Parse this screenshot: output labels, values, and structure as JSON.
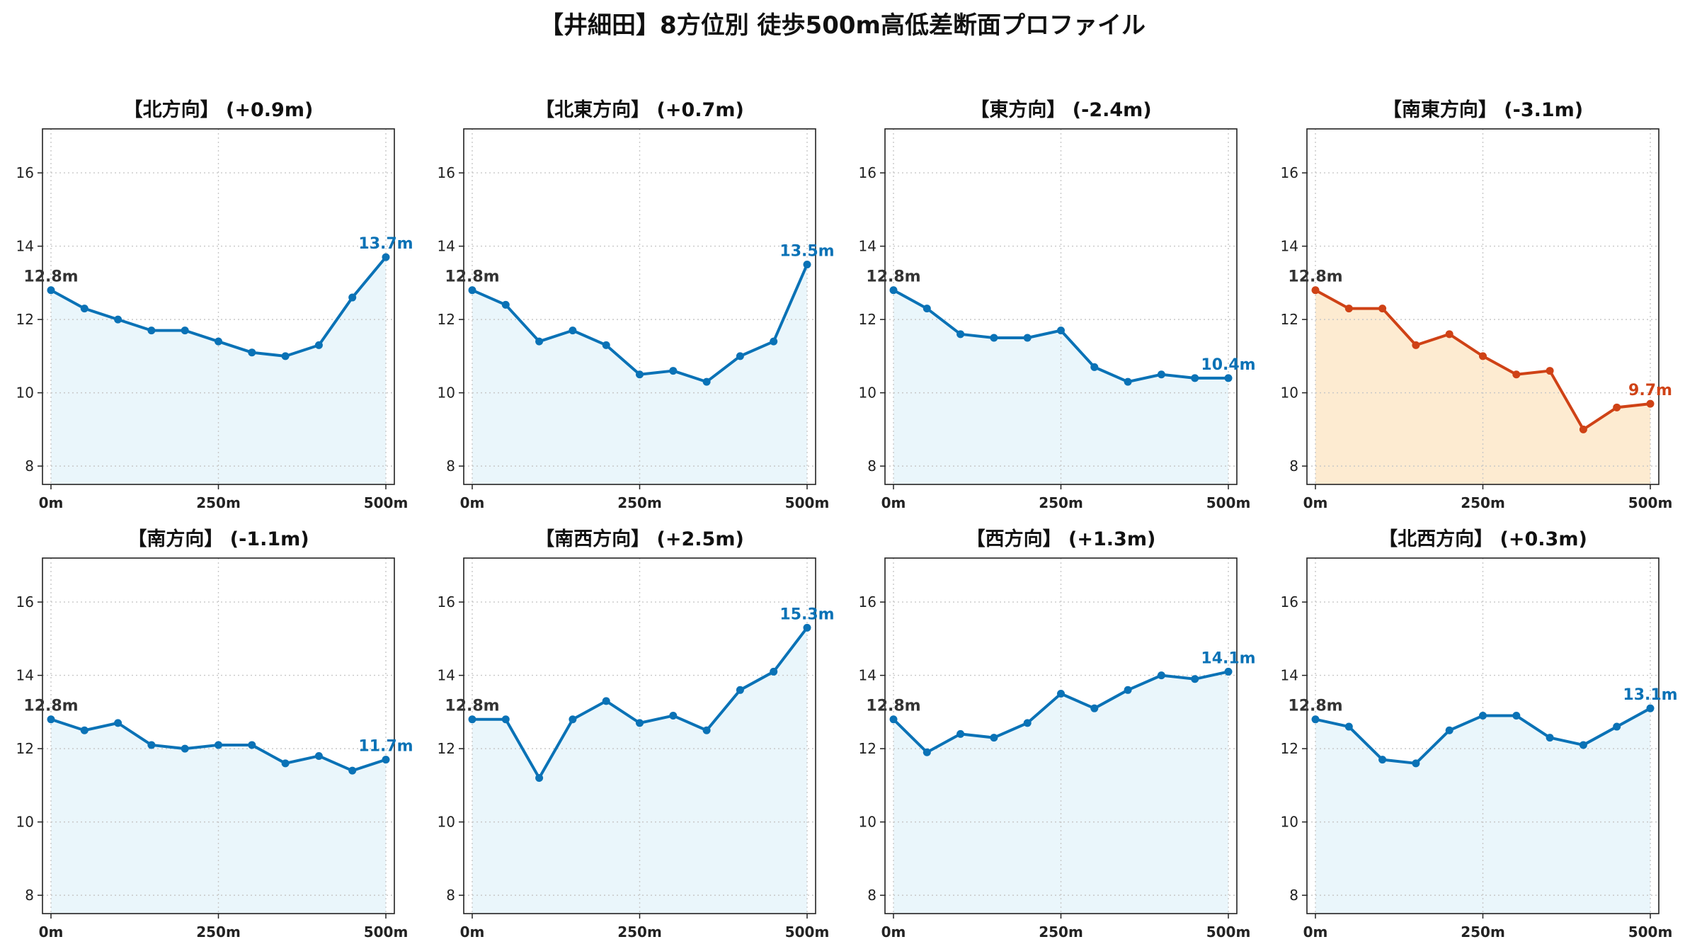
{
  "title": "【井細田】8方位別 徒歩500m高低差断面プロファイル",
  "colors": {
    "normal_line": "#0a72b6",
    "normal_fill": "#eaf6fb",
    "highlight_line": "#cf4216",
    "highlight_fill": "#fdebd1",
    "start_label": "#333333",
    "grid": "#c8c8c8"
  },
  "chart_data": [
    {
      "type": "area",
      "title": "【北方向】 (+0.9m)",
      "x": [
        0,
        50,
        100,
        150,
        200,
        250,
        300,
        350,
        400,
        450,
        500
      ],
      "values": [
        12.8,
        12.3,
        12.0,
        11.7,
        11.7,
        11.4,
        11.1,
        11.0,
        11.3,
        12.6,
        13.7
      ],
      "start_label": "12.8m",
      "end_label": "13.7m",
      "highlight": false,
      "ylim": [
        7.5,
        17.2
      ],
      "yticks": [
        "8",
        "10",
        "12",
        "14",
        "16"
      ],
      "xticks": [
        "0m",
        "250m",
        "500m"
      ],
      "grid": true
    },
    {
      "type": "area",
      "title": "【北東方向】 (+0.7m)",
      "x": [
        0,
        50,
        100,
        150,
        200,
        250,
        300,
        350,
        400,
        450,
        500
      ],
      "values": [
        12.8,
        12.4,
        11.4,
        11.7,
        11.3,
        10.5,
        10.6,
        10.3,
        11.0,
        11.4,
        13.5
      ],
      "start_label": "12.8m",
      "end_label": "13.5m",
      "highlight": false,
      "ylim": [
        7.5,
        17.2
      ],
      "yticks": [
        "8",
        "10",
        "12",
        "14",
        "16"
      ],
      "xticks": [
        "0m",
        "250m",
        "500m"
      ],
      "grid": true
    },
    {
      "type": "area",
      "title": "【東方向】 (-2.4m)",
      "x": [
        0,
        50,
        100,
        150,
        200,
        250,
        300,
        350,
        400,
        450,
        500
      ],
      "values": [
        12.8,
        12.3,
        11.6,
        11.5,
        11.5,
        11.7,
        10.7,
        10.3,
        10.5,
        10.4,
        10.4
      ],
      "start_label": "12.8m",
      "end_label": "10.4m",
      "highlight": false,
      "ylim": [
        7.5,
        17.2
      ],
      "yticks": [
        "8",
        "10",
        "12",
        "14",
        "16"
      ],
      "xticks": [
        "0m",
        "250m",
        "500m"
      ],
      "grid": true
    },
    {
      "type": "area",
      "title": "【南東方向】 (-3.1m)",
      "x": [
        0,
        50,
        100,
        150,
        200,
        250,
        300,
        350,
        400,
        450,
        500
      ],
      "values": [
        12.8,
        12.3,
        12.3,
        11.3,
        11.6,
        11.0,
        10.5,
        10.6,
        9.0,
        9.6,
        9.7
      ],
      "start_label": "12.8m",
      "end_label": "9.7m",
      "highlight": true,
      "ylim": [
        7.5,
        17.2
      ],
      "yticks": [
        "8",
        "10",
        "12",
        "14",
        "16"
      ],
      "xticks": [
        "0m",
        "250m",
        "500m"
      ],
      "grid": true
    },
    {
      "type": "area",
      "title": "【南方向】 (-1.1m)",
      "x": [
        0,
        50,
        100,
        150,
        200,
        250,
        300,
        350,
        400,
        450,
        500
      ],
      "values": [
        12.8,
        12.5,
        12.7,
        12.1,
        12.0,
        12.1,
        12.1,
        11.6,
        11.8,
        11.4,
        11.7
      ],
      "start_label": "12.8m",
      "end_label": "11.7m",
      "highlight": false,
      "ylim": [
        7.5,
        17.2
      ],
      "yticks": [
        "8",
        "10",
        "12",
        "14",
        "16"
      ],
      "xticks": [
        "0m",
        "250m",
        "500m"
      ],
      "grid": true
    },
    {
      "type": "area",
      "title": "【南西方向】 (+2.5m)",
      "x": [
        0,
        50,
        100,
        150,
        200,
        250,
        300,
        350,
        400,
        450,
        500
      ],
      "values": [
        12.8,
        12.8,
        11.2,
        12.8,
        13.3,
        12.7,
        12.9,
        12.5,
        13.6,
        14.1,
        15.3
      ],
      "start_label": "12.8m",
      "end_label": "15.3m",
      "highlight": false,
      "ylim": [
        7.5,
        17.2
      ],
      "yticks": [
        "8",
        "10",
        "12",
        "14",
        "16"
      ],
      "xticks": [
        "0m",
        "250m",
        "500m"
      ],
      "grid": true
    },
    {
      "type": "area",
      "title": "【西方向】 (+1.3m)",
      "x": [
        0,
        50,
        100,
        150,
        200,
        250,
        300,
        350,
        400,
        450,
        500
      ],
      "values": [
        12.8,
        11.9,
        12.4,
        12.3,
        12.7,
        13.5,
        13.1,
        13.6,
        14.0,
        13.9,
        14.1
      ],
      "start_label": "12.8m",
      "end_label": "14.1m",
      "highlight": false,
      "ylim": [
        7.5,
        17.2
      ],
      "yticks": [
        "8",
        "10",
        "12",
        "14",
        "16"
      ],
      "xticks": [
        "0m",
        "250m",
        "500m"
      ],
      "grid": true
    },
    {
      "type": "area",
      "title": "【北西方向】 (+0.3m)",
      "x": [
        0,
        50,
        100,
        150,
        200,
        250,
        300,
        350,
        400,
        450,
        500
      ],
      "values": [
        12.8,
        12.6,
        11.7,
        11.6,
        12.5,
        12.9,
        12.9,
        12.3,
        12.1,
        12.6,
        13.1
      ],
      "start_label": "12.8m",
      "end_label": "13.1m",
      "highlight": false,
      "ylim": [
        7.5,
        17.2
      ],
      "yticks": [
        "8",
        "10",
        "12",
        "14",
        "16"
      ],
      "xticks": [
        "0m",
        "250m",
        "500m"
      ],
      "grid": true
    }
  ]
}
